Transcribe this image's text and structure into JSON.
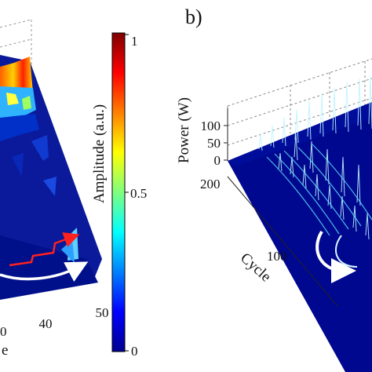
{
  "chart_data": [
    {
      "type": "surface",
      "x_tick_labels": [
        "0",
        "40",
        "50"
      ],
      "xlabel_visible": "e",
      "colorbar": {
        "label": "Amplitude (a.u.)",
        "tick_labels": [
          "1",
          "0.5",
          "0"
        ],
        "range": [
          0,
          1
        ]
      }
    },
    {
      "type": "surface",
      "panel_label": "b)",
      "zlabel": "Power (W)",
      "z_tick_labels": [
        "100",
        "50",
        "0"
      ],
      "zlim": [
        0,
        150
      ],
      "ylabel": "Cycle",
      "y_tick_labels": [
        "200",
        "100"
      ],
      "ylim": [
        0,
        220
      ]
    }
  ],
  "colors": {
    "low": "#00008f",
    "mid": "#00ffff",
    "high": "#800000",
    "arrow_white": "#ffffff",
    "arrow_red": "#ff2020"
  }
}
